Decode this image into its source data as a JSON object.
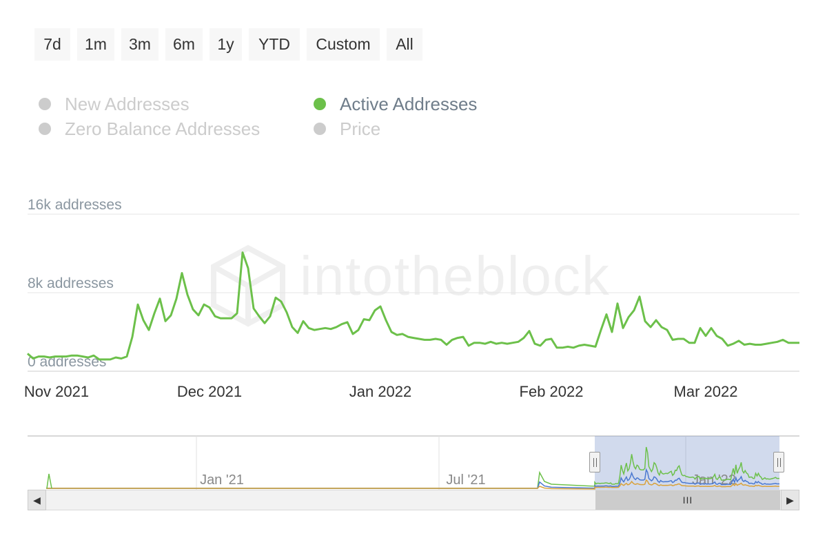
{
  "range_buttons": [
    "7d",
    "1m",
    "3m",
    "6m",
    "1y",
    "YTD",
    "Custom",
    "All"
  ],
  "legend": [
    {
      "label": "New Addresses",
      "active": false
    },
    {
      "label": "Active Addresses",
      "active": true
    },
    {
      "label": "Zero Balance Addresses",
      "active": false
    },
    {
      "label": "Price",
      "active": false
    }
  ],
  "watermark": "intotheblock",
  "colors": {
    "active": "#6cc04a",
    "inactive": "#cccccc",
    "blue": "#4a78d0",
    "orange": "#d9a23b"
  },
  "chart_data": {
    "type": "line",
    "title": "",
    "series": [
      {
        "name": "Active Addresses",
        "x_start": "2021-10-29",
        "x_step_days": 1,
        "values": [
          1800,
          1300,
          1500,
          1500,
          1400,
          1500,
          1500,
          1500,
          1600,
          1600,
          1500,
          1400,
          1600,
          1200,
          1200,
          1200,
          1400,
          1300,
          1500,
          3500,
          6800,
          5200,
          4200,
          5900,
          7400,
          5100,
          5700,
          7400,
          10000,
          7800,
          6300,
          5700,
          6800,
          6500,
          5600,
          5400,
          5400,
          5400,
          5900,
          12100,
          10500,
          6400,
          5600,
          4900,
          5600,
          7500,
          7100,
          6000,
          4500,
          3900,
          5100,
          4400,
          4200,
          4300,
          4400,
          4300,
          4500,
          4800,
          5000,
          3800,
          4200,
          5300,
          5200,
          6200,
          6600,
          5200,
          4000,
          3700,
          3800,
          3500,
          3400,
          3300,
          3200,
          3200,
          3300,
          3200,
          2700,
          3200,
          3400,
          3500,
          2600,
          2900,
          2900,
          2800,
          3000,
          2800,
          2900,
          2800,
          2900,
          3000,
          3400,
          4100,
          2800,
          2600,
          3200,
          3300,
          2400,
          2400,
          2500,
          2400,
          2600,
          2700,
          2600,
          2500,
          4200,
          5800,
          4000,
          6900,
          4400,
          5500,
          6200,
          7600,
          5100,
          4500,
          5200,
          4500,
          4200,
          3200,
          3300,
          3300,
          2900,
          2900,
          4400,
          3600,
          4400,
          3600,
          3300,
          2600,
          2800,
          3100,
          2700,
          2800,
          2700,
          2700,
          2800,
          2900,
          3000,
          3200,
          2900,
          2900,
          2900
        ]
      }
    ],
    "x_ticks": [
      "Nov 2021",
      "Dec 2021",
      "Jan 2022",
      "Feb 2022",
      "Mar 2022"
    ],
    "y_ticks": [
      "0 addresses",
      "8k addresses",
      "16k addresses"
    ],
    "ylim": [
      0,
      16000
    ],
    "grid": true,
    "legend": "top",
    "navigator": {
      "x_ticks": [
        "Jan '21",
        "Jul '21",
        "Jan '22"
      ],
      "selected_range": [
        "Nov 2021",
        "Mar 2022"
      ]
    }
  }
}
